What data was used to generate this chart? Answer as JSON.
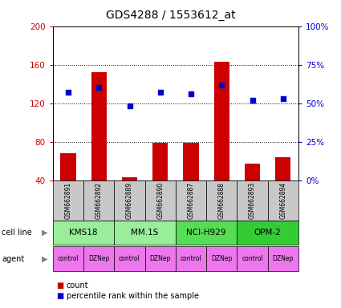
{
  "title": "GDS4288 / 1553612_at",
  "samples": [
    "GSM662891",
    "GSM662892",
    "GSM662889",
    "GSM662890",
    "GSM662887",
    "GSM662888",
    "GSM662893",
    "GSM662894"
  ],
  "count_values": [
    68,
    152,
    43,
    79,
    79,
    163,
    57,
    64
  ],
  "percentile_values": [
    57,
    60,
    48,
    57,
    56,
    62,
    52,
    53
  ],
  "ylim_left": [
    40,
    200
  ],
  "ylim_right": [
    0,
    100
  ],
  "yticks_left": [
    40,
    80,
    120,
    160,
    200
  ],
  "yticks_right": [
    0,
    25,
    50,
    75,
    100
  ],
  "ytick_labels_right": [
    "0%",
    "25%",
    "50%",
    "75%",
    "100%"
  ],
  "cell_line_data": [
    {
      "name": "KMS18",
      "cols": [
        0,
        1
      ],
      "color": "#99EE99"
    },
    {
      "name": "MM.1S",
      "cols": [
        2,
        3
      ],
      "color": "#99EE99"
    },
    {
      "name": "NCI-H929",
      "cols": [
        4,
        5
      ],
      "color": "#55DD55"
    },
    {
      "name": "OPM-2",
      "cols": [
        6,
        7
      ],
      "color": "#33CC33"
    }
  ],
  "agents": [
    "control",
    "DZNep",
    "control",
    "DZNep",
    "control",
    "DZNep",
    "control",
    "DZNep"
  ],
  "agent_color": "#EE77EE",
  "gsm_bg_color": "#C8C8C8",
  "bar_color": "#CC0000",
  "dot_color": "#0000CC",
  "legend_count_color": "#CC0000",
  "legend_pct_color": "#0000CC",
  "left_tick_color": "#CC0000",
  "right_tick_color": "#0000CC"
}
